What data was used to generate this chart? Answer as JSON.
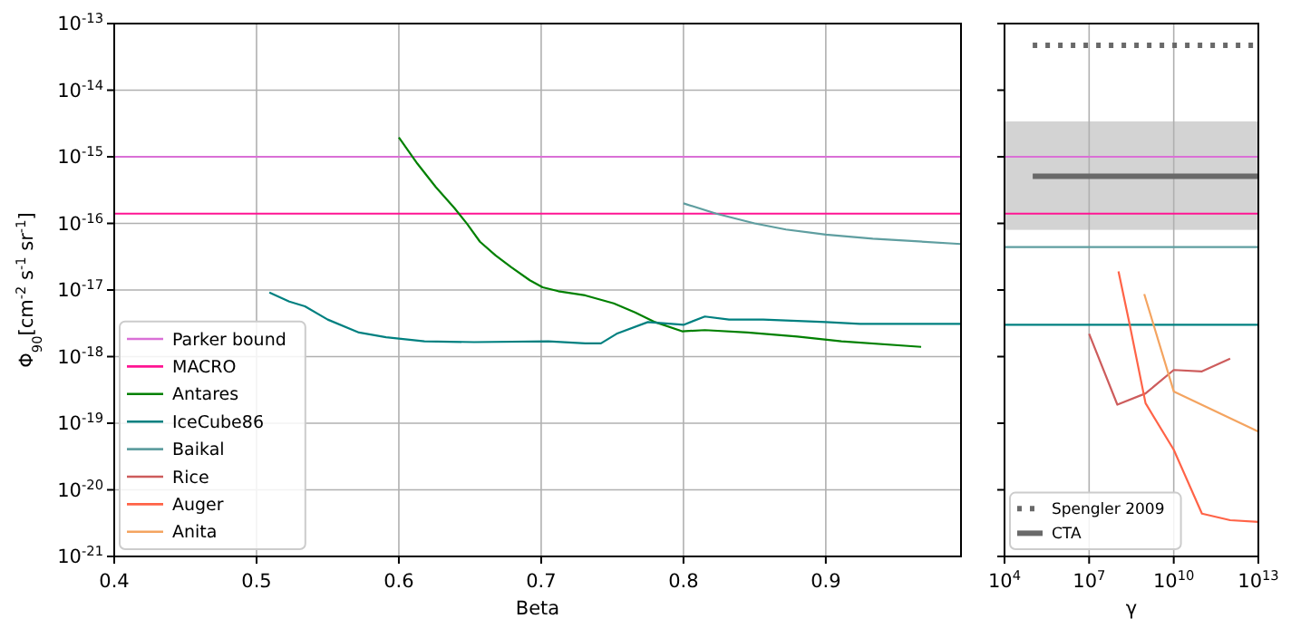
{
  "chart_data": [
    {
      "type": "line",
      "xlabel": "Beta",
      "ylabel": "Φ$_{90}$[cm$^{-2}$ s$^{-1}$ sr$^{-1}$]",
      "log": "y",
      "grid": true,
      "legend": "bottom left",
      "xlim": [
        0.4,
        0.995
      ],
      "ylim": [
        1e-21,
        1e-13
      ],
      "xticks": [
        0.4,
        0.5,
        0.6,
        0.7,
        0.8,
        0.9
      ],
      "yticks": [
        {
          "value": 1e-21,
          "label": "10$^{-21}$"
        },
        {
          "value": 1e-20,
          "label": "10$^{-20}$"
        },
        {
          "value": 1e-19,
          "label": "10$^{-19}$"
        },
        {
          "value": 1e-18,
          "label": "10$^{-18}$"
        },
        {
          "value": 1e-17,
          "label": "10$^{-17}$"
        },
        {
          "value": 1e-16,
          "label": "10$^{-16}$"
        },
        {
          "value": 1e-15,
          "label": "10$^{-15}$"
        },
        {
          "value": 1e-14,
          "label": "10$^{-14}$"
        },
        {
          "value": 1e-13,
          "label": "10$^{-13}$"
        }
      ],
      "series": [
        {
          "name": "Parker bound",
          "color": "#da70d6",
          "x": [
            0.4,
            0.995
          ],
          "values": [
            1e-15,
            1e-15
          ]
        },
        {
          "name": "MACRO",
          "color": "#ff1493",
          "x": [
            0.4,
            0.995
          ],
          "values": [
            1.4e-16,
            1.4e-16
          ]
        },
        {
          "name": "Antares",
          "color": "#008000",
          "x": [
            0.6,
            0.613,
            0.626,
            0.639,
            0.648,
            0.657,
            0.668,
            0.679,
            0.692,
            0.701,
            0.712,
            0.731,
            0.751,
            0.766,
            0.78,
            0.799,
            0.815,
            0.845,
            0.88,
            0.911,
            0.967
          ],
          "values": [
            1.95e-15,
            7.9e-16,
            3.5e-16,
            1.7e-16,
            9.8e-17,
            5.3e-17,
            3.3e-17,
            2.2e-17,
            1.4e-17,
            1.1e-17,
            9.6e-18,
            8.3e-18,
            6.3e-18,
            4.6e-18,
            3.3e-18,
            2.4e-18,
            2.5e-18,
            2.3e-18,
            2e-18,
            1.7e-18,
            1.4e-18
          ]
        },
        {
          "name": "IceCube86",
          "color": "#008080",
          "x": [
            0.509,
            0.523,
            0.534,
            0.55,
            0.572,
            0.591,
            0.618,
            0.653,
            0.705,
            0.731,
            0.742,
            0.753,
            0.775,
            0.8,
            0.815,
            0.832,
            0.856,
            0.9,
            0.924,
            0.995
          ],
          "values": [
            9.2e-18,
            6.7e-18,
            5.7e-18,
            3.6e-18,
            2.3e-18,
            1.95e-18,
            1.7e-18,
            1.65e-18,
            1.7e-18,
            1.58e-18,
            1.58e-18,
            2.2e-18,
            3.3e-18,
            3e-18,
            4e-18,
            3.6e-18,
            3.6e-18,
            3.3e-18,
            3.1e-18,
            3.1e-18
          ]
        },
        {
          "name": "Baikal",
          "color": "#5f9ea0",
          "x": [
            0.8,
            0.823,
            0.85,
            0.872,
            0.9,
            0.933,
            0.995
          ],
          "values": [
            2e-16,
            1.4e-16,
            1e-16,
            8.1e-17,
            6.8e-17,
            5.9e-17,
            4.9e-17
          ]
        },
        {
          "name": "Rice",
          "color": "#cd5c5c"
        },
        {
          "name": "Auger",
          "color": "#ff6347"
        },
        {
          "name": "Anita",
          "color": "#f4a460"
        }
      ]
    },
    {
      "type": "line",
      "xlabel": "γ",
      "log": "xy",
      "grid": "x",
      "legend": "bottom left",
      "tick_labels": "x",
      "xlim": [
        10000.0,
        10000000000000.0
      ],
      "ylim": [
        1e-21,
        1e-13
      ],
      "xticks": [
        {
          "value": 10000.0,
          "label": "10$^{4}$"
        },
        {
          "value": 10000000.0,
          "label": "10$^{7}$"
        },
        {
          "value": 10000000000.0,
          "label": "10$^{10}$"
        },
        {
          "value": 10000000000000.0,
          "label": "10$^{13}$"
        }
      ],
      "yticks": [
        {
          "value": 1e-21,
          "label": null
        },
        {
          "value": 1e-20,
          "label": null
        },
        {
          "value": 1e-19,
          "label": null
        },
        {
          "value": 1e-18,
          "label": null
        },
        {
          "value": 1e-17,
          "label": null
        },
        {
          "value": 1e-16,
          "label": null
        },
        {
          "value": 1e-15,
          "label": null
        },
        {
          "value": 1e-14,
          "label": null
        },
        {
          "value": 1e-13,
          "label": null
        }
      ],
      "bands": [
        {
          "axis": "y",
          "from": 8e-17,
          "to": 3.4e-15,
          "color": "#d3d3d3"
        }
      ],
      "series": [
        {
          "name": "Spengler 2009",
          "color": "#696969",
          "line_style": "dotted",
          "x": [
            100000.0,
            10000000000000.0
          ],
          "values": [
            4.7e-14,
            4.7e-14
          ]
        },
        {
          "name": "CTA",
          "color": "#696969",
          "line_style": "solid",
          "x": [
            100000.0,
            10000000000000.0
          ],
          "values": [
            5.1e-16,
            5.1e-16
          ]
        },
        {
          "color": "#da70d6",
          "x": [
            10000.0,
            10000000000000.0
          ],
          "values": [
            1e-15,
            1e-15
          ]
        },
        {
          "color": "#ff1493",
          "x": [
            10000.0,
            10000000000000.0
          ],
          "values": [
            1.4e-16,
            1.4e-16
          ]
        },
        {
          "color": "#5f9ea0",
          "x": [
            10000.0,
            10000000000000.0
          ],
          "values": [
            4.4e-17,
            4.4e-17
          ]
        },
        {
          "color": "#008080",
          "x": [
            10000.0,
            10000000000000.0
          ],
          "values": [
            3e-18,
            3e-18
          ]
        },
        {
          "color": "#cd5c5c",
          "x": [
            10000000.0,
            100000000.0,
            1000000000.0,
            10000000000.0,
            100000000000.0,
            1000000000000.0
          ],
          "values": [
            2.2e-18,
            1.9e-19,
            2.8e-19,
            6.3e-19,
            6e-19,
            9.3e-19
          ]
        },
        {
          "color": "#ff6347",
          "x": [
            110000000.0,
            280000000.0,
            1000000000.0,
            10000000000.0,
            100000000000.0,
            1000000000000.0,
            10000000000000.0
          ],
          "values": [
            1.9e-17,
            2.9e-18,
            2e-19,
            4e-20,
            4.4e-21,
            3.5e-21,
            3.3e-21
          ]
        },
        {
          "color": "#f4a460",
          "x": [
            900000000.0,
            10000000000.0,
            10000000000000.0
          ],
          "values": [
            8.7e-18,
            3e-19,
            7.5e-20
          ]
        }
      ]
    }
  ]
}
